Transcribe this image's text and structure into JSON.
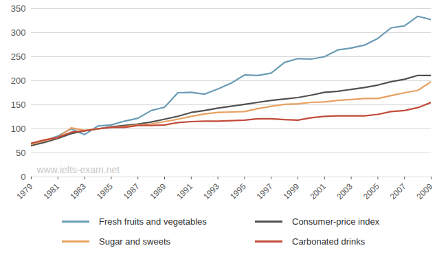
{
  "chart_data": {
    "type": "line",
    "annotation": "www.ielts-exam.net",
    "x": [
      1979,
      1980,
      1981,
      1982,
      1983,
      1984,
      1985,
      1986,
      1987,
      1988,
      1989,
      1990,
      1991,
      1992,
      1993,
      1994,
      1995,
      1996,
      1997,
      1998,
      1999,
      2000,
      2001,
      2002,
      2003,
      2004,
      2005,
      2006,
      2007,
      2008,
      2009
    ],
    "xlim": [
      1979,
      2009
    ],
    "xticks": [
      1979,
      1981,
      1983,
      1985,
      1987,
      1989,
      1991,
      1993,
      1995,
      1997,
      1999,
      2001,
      2003,
      2005,
      2007,
      2009
    ],
    "ylim": [
      0,
      350
    ],
    "yticks": [
      0,
      50,
      100,
      150,
      200,
      250,
      300,
      350
    ],
    "grid": true,
    "legend": "bottom",
    "series": [
      {
        "name": "Fresh fruits and vegetables",
        "color": "#6a9bb5",
        "line_style": "solid",
        "values": [
          68,
          75,
          85,
          100,
          88,
          106,
          108,
          116,
          122,
          138,
          145,
          175,
          176,
          172,
          183,
          195,
          212,
          211,
          216,
          238,
          246,
          245,
          250,
          264,
          268,
          274,
          288,
          310,
          314,
          334,
          327
        ]
      },
      {
        "name": "Consumer-price index",
        "color": "#505050",
        "line_style": "solid",
        "values": [
          65,
          72,
          80,
          90,
          96,
          100,
          104,
          107,
          110,
          114,
          120,
          126,
          134,
          138,
          143,
          147,
          151,
          155,
          159,
          162,
          165,
          170,
          176,
          178,
          182,
          186,
          191,
          198,
          203,
          211,
          211
        ]
      },
      {
        "name": "Sugar and sweets",
        "color": "#e8a060",
        "line_style": "solid",
        "values": [
          68,
          75,
          82,
          102,
          97,
          100,
          103,
          105,
          108,
          110,
          115,
          120,
          126,
          131,
          134,
          135,
          136,
          142,
          147,
          151,
          152,
          155,
          156,
          159,
          161,
          163,
          163,
          169,
          175,
          180,
          198
        ]
      },
      {
        "name": "Carbonated drinks",
        "color": "#c24a3a",
        "line_style": "solid",
        "values": [
          70,
          77,
          82,
          93,
          96,
          100,
          103,
          103,
          107,
          107,
          108,
          113,
          115,
          116,
          116,
          117,
          118,
          121,
          121,
          119,
          118,
          123,
          126,
          127,
          127,
          127,
          130,
          136,
          138,
          144,
          155
        ]
      }
    ]
  }
}
